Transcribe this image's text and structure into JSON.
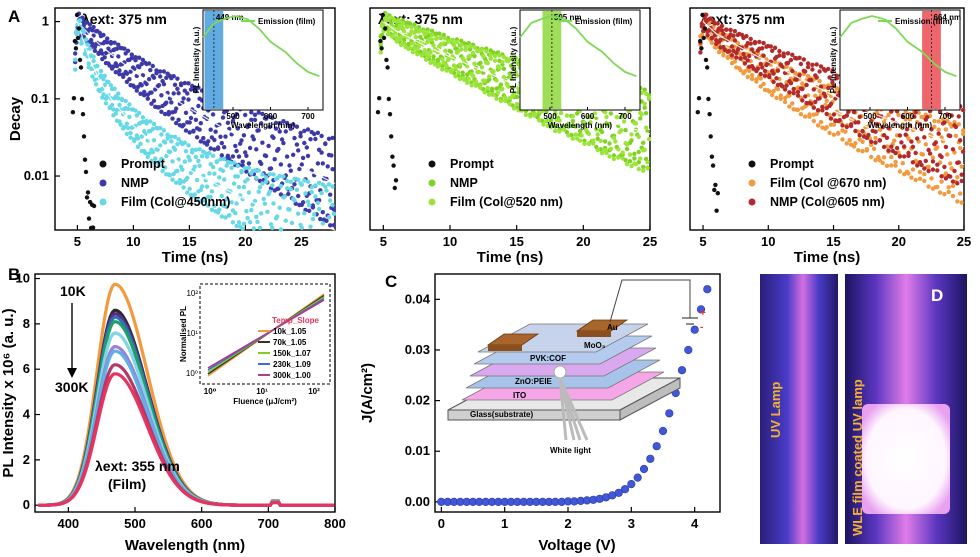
{
  "panel_letters": {
    "a": "A",
    "b": "B",
    "c": "C",
    "d": "D"
  },
  "chart_data": [
    {
      "id": "A1",
      "type": "scatter",
      "annotation": "λext: 375 nm",
      "xlabel": "Time (ns)",
      "ylabel": "Decay",
      "xlim": [
        3,
        28
      ],
      "ylim": [
        0.002,
        1.5
      ],
      "yscale": "log",
      "xticks": [
        5,
        10,
        15,
        20,
        25
      ],
      "yticks": [
        "0.01",
        "0.1",
        "1"
      ],
      "legend_position": "bottom-left",
      "series": [
        {
          "name": "Prompt",
          "color": "#111111",
          "x": [
            4.6,
            4.8,
            5.0,
            5.2,
            5.4,
            5.6,
            5.8,
            6.0,
            6.2,
            6.5
          ],
          "y": [
            0.05,
            0.5,
            1.0,
            0.5,
            0.12,
            0.03,
            0.008,
            0.004,
            0.003,
            0.003
          ]
        },
        {
          "name": "NMP",
          "color": "#3d3aa8",
          "x": [
            4.8,
            5,
            6,
            7,
            8,
            10,
            12,
            15,
            18,
            20,
            22,
            25,
            28
          ],
          "y": [
            0.3,
            1.0,
            0.7,
            0.5,
            0.38,
            0.23,
            0.14,
            0.075,
            0.042,
            0.03,
            0.021,
            0.013,
            0.008
          ]
        },
        {
          "name": "Film (Col@450nm)",
          "color": "#66d8e6",
          "x": [
            4.8,
            5,
            6,
            7,
            8,
            10,
            12,
            15,
            18,
            20,
            22,
            25,
            28
          ],
          "y": [
            0.3,
            1.0,
            0.35,
            0.17,
            0.1,
            0.045,
            0.025,
            0.012,
            0.007,
            0.005,
            0.0038,
            0.0027,
            0.002
          ]
        }
      ],
      "inset": {
        "ylabel": "PL Intensity (a.u.)",
        "xlabel": "Wavelength (nm)",
        "xticks": [
          500,
          600,
          700
        ],
        "legend": "Emission (film)",
        "highlight": "449 nm",
        "highlight_color": "#2a8fd8",
        "line_color": "#7ed957"
      }
    },
    {
      "id": "A2",
      "type": "scatter",
      "annotation": "λext: 375 nm",
      "xlabel": "Time (ns)",
      "ylabel": "",
      "xlim": [
        4,
        25
      ],
      "ylim": [
        0.002,
        1.5
      ],
      "yscale": "log",
      "xticks": [
        5,
        10,
        15,
        20,
        25
      ],
      "yticks": [],
      "legend_position": "bottom-left",
      "series": [
        {
          "name": "Prompt",
          "color": "#111111",
          "x": [
            4.6,
            4.8,
            5.0,
            5.2,
            5.4,
            5.6,
            5.8,
            6.0
          ],
          "y": [
            0.05,
            0.5,
            1.0,
            0.5,
            0.12,
            0.03,
            0.01,
            0.006
          ]
        },
        {
          "name": "NMP",
          "color": "#7ed321",
          "x": [
            4.8,
            5,
            6,
            8,
            10,
            12,
            15,
            18,
            20,
            22,
            25
          ],
          "y": [
            0.5,
            1.0,
            0.8,
            0.55,
            0.38,
            0.27,
            0.16,
            0.1,
            0.075,
            0.055,
            0.04
          ]
        },
        {
          "name": "Film (Col@520 nm)",
          "color": "#9be53a",
          "x": [
            4.8,
            5,
            6,
            8,
            10,
            12,
            15,
            18,
            20,
            22,
            25
          ],
          "y": [
            0.5,
            1.0,
            0.75,
            0.5,
            0.35,
            0.25,
            0.15,
            0.09,
            0.07,
            0.05,
            0.035
          ]
        }
      ],
      "inset": {
        "ylabel": "PL Intensity (a.u.)",
        "xlabel": "Wavelength (nm)",
        "xticks": [
          500,
          600,
          700
        ],
        "legend": "Emission (film)",
        "highlight": "505 nm",
        "highlight_color": "#7ed321",
        "line_color": "#7ed957"
      }
    },
    {
      "id": "A3",
      "type": "scatter",
      "annotation": "λext: 375 nm",
      "xlabel": "Time (ns)",
      "ylabel": "",
      "xlim": [
        4,
        25
      ],
      "ylim": [
        0.002,
        1.5
      ],
      "yscale": "log",
      "xticks": [
        5,
        10,
        15,
        20,
        25
      ],
      "yticks": [],
      "legend_position": "bottom-left",
      "series": [
        {
          "name": "Prompt",
          "color": "#111111",
          "x": [
            4.6,
            4.8,
            5.0,
            5.2,
            5.4,
            5.6,
            5.8,
            6.0,
            6.2
          ],
          "y": [
            0.05,
            0.5,
            1.0,
            0.5,
            0.12,
            0.03,
            0.01,
            0.005,
            0.004
          ]
        },
        {
          "name": "Film (Col @670 nm)",
          "color": "#f29a3f",
          "x": [
            4.8,
            5,
            6,
            8,
            10,
            12,
            15,
            18,
            20,
            22,
            25
          ],
          "y": [
            0.5,
            1.0,
            0.6,
            0.33,
            0.2,
            0.13,
            0.07,
            0.04,
            0.03,
            0.022,
            0.014
          ]
        },
        {
          "name": "NMP (Col@605 nm)",
          "color": "#b22a2a",
          "x": [
            4.8,
            5,
            6,
            8,
            10,
            12,
            15,
            18,
            20,
            22,
            25
          ],
          "y": [
            0.5,
            1.0,
            0.7,
            0.45,
            0.3,
            0.2,
            0.11,
            0.065,
            0.048,
            0.035,
            0.024
          ]
        }
      ],
      "inset": {
        "ylabel": "PL Intensity (a.u.)",
        "xlabel": "Wavelength (nm)",
        "xticks": [
          500,
          600,
          700
        ],
        "legend": "Emission (film)",
        "highlight": "664 nm",
        "highlight_color": "#e8333a",
        "line_color": "#7ed957"
      }
    },
    {
      "id": "B",
      "type": "line",
      "xlabel": "Wavelength (nm)",
      "ylabel": "PL Intensity x 10⁶ (a. u.)",
      "xlim": [
        350,
        800
      ],
      "ylim": [
        -0.3,
        10.2
      ],
      "xticks": [
        400,
        500,
        600,
        700,
        800
      ],
      "yticks": [
        0,
        2,
        4,
        6,
        8,
        10
      ],
      "annotations": {
        "top": "10K",
        "bottom": "300K",
        "excitation": "λext: 355 nm",
        "sample": "(Film)"
      },
      "peak_wavelength": 470,
      "series": [
        {
          "color": "#f29a3f",
          "peak": 9.75
        },
        {
          "color": "#2b2b2b",
          "peak": 8.6
        },
        {
          "color": "#5b2a86",
          "peak": 8.45
        },
        {
          "color": "#2f6fb5",
          "peak": 8.3
        },
        {
          "color": "#1f9f6a",
          "peak": 8.1
        },
        {
          "color": "#7fd4e8",
          "peak": 7.6
        },
        {
          "color": "#9b7fd4",
          "peak": 7.0
        },
        {
          "color": "#5fb0e8",
          "peak": 6.8
        },
        {
          "color": "#b23a6a",
          "peak": 6.2
        },
        {
          "color": "#e8335f",
          "peak": 5.8
        }
      ],
      "inset": {
        "ylabel": "Normalised PL",
        "xlabel": "Fluence (μJ/cm²)",
        "xticks": [
          "10⁰",
          "10¹",
          "10²"
        ],
        "yticks": [
          "10⁰",
          "10¹",
          "10²"
        ],
        "legend_title": "Temp_Slope",
        "legend": [
          {
            "label": "10k_1.05",
            "color": "#f29a3f"
          },
          {
            "label": "70k_1.05",
            "color": "#333333"
          },
          {
            "label": "150k_1.07",
            "color": "#7ed321"
          },
          {
            "label": "230k_1.09",
            "color": "#3a6fd8"
          },
          {
            "label": "300k_1.00",
            "color": "#b23a8a"
          }
        ]
      }
    },
    {
      "id": "C",
      "type": "scatter",
      "xlabel": "Voltage (V)",
      "ylabel": "J(A/cm²)",
      "xlim": [
        -0.1,
        4.4
      ],
      "ylim": [
        -0.002,
        0.045
      ],
      "xticks": [
        0,
        1,
        2,
        3,
        4
      ],
      "yticks": [
        "0.00",
        "0.01",
        "0.02",
        "0.03",
        "0.04"
      ],
      "series": [
        {
          "color": "#4257d6",
          "x": [
            0,
            0.1,
            0.2,
            0.3,
            0.4,
            0.5,
            0.6,
            0.7,
            0.8,
            0.9,
            1.0,
            1.1,
            1.2,
            1.3,
            1.4,
            1.5,
            1.6,
            1.7,
            1.8,
            1.9,
            2.0,
            2.1,
            2.2,
            2.3,
            2.4,
            2.5,
            2.6,
            2.7,
            2.8,
            2.9,
            3.0,
            3.1,
            3.2,
            3.3,
            3.4,
            3.5,
            3.6,
            3.7,
            3.8,
            3.9,
            4.0,
            4.1,
            4.2
          ],
          "y": [
            0,
            0,
            0,
            0,
            0,
            0,
            0,
            0,
            0,
            0,
            0,
            0,
            0,
            0,
            0,
            0,
            0,
            0,
            0,
            0,
            0.0001,
            0.0001,
            0.0002,
            0.0003,
            0.0004,
            0.0006,
            0.0009,
            0.0013,
            0.0018,
            0.0025,
            0.0035,
            0.0048,
            0.0065,
            0.0085,
            0.011,
            0.014,
            0.0175,
            0.0215,
            0.026,
            0.03,
            0.034,
            0.038,
            0.042
          ]
        }
      ],
      "inset": {
        "layers": [
          "Au",
          "MoO₃",
          "PVK:COF",
          "ZnO:PEIE",
          "ITO",
          "Glass(substrate)"
        ],
        "output_label": "White light",
        "pvk_color": "#e8335f"
      }
    }
  ],
  "photo_d": {
    "left_label": "UV Lamp",
    "right_label": "WLE film coated UV lamp",
    "label_color": "#f2b233"
  }
}
